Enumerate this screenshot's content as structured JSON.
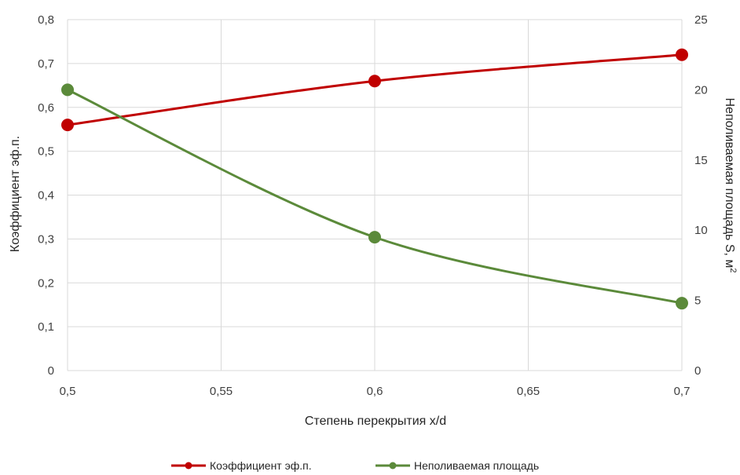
{
  "chart_data": {
    "type": "line",
    "xlabel": "Степень перекрытия x/d",
    "ylabel_left": "Коэффициент эф.п.",
    "ylabel_right_main": "Неполиваемая площадь S, м",
    "ylabel_right_sup": "2",
    "x": [
      0.5,
      0.6,
      0.7
    ],
    "xlim": [
      0.5,
      0.7
    ],
    "xticks": [
      "0,5",
      "0,55",
      "0,6",
      "0,65",
      "0,7"
    ],
    "ylim_left": [
      0,
      0.8
    ],
    "yticks_left": [
      "0",
      "0,1",
      "0,2",
      "0,3",
      "0,4",
      "0,5",
      "0,6",
      "0,7",
      "0,8"
    ],
    "ylim_right": [
      0,
      25
    ],
    "yticks_right": [
      "0",
      "5",
      "10",
      "15",
      "20",
      "25"
    ],
    "grid": true,
    "legend_position": "bottom",
    "series": [
      {
        "name": "Коэффициент эф.п.",
        "axis": "left",
        "values": [
          0.56,
          0.66,
          0.72
        ],
        "color": "#c00000"
      },
      {
        "name": "Неполиваемая площадь",
        "axis": "right",
        "values": [
          20,
          9.5,
          4.8
        ],
        "color": "#5b8a3a"
      }
    ]
  }
}
